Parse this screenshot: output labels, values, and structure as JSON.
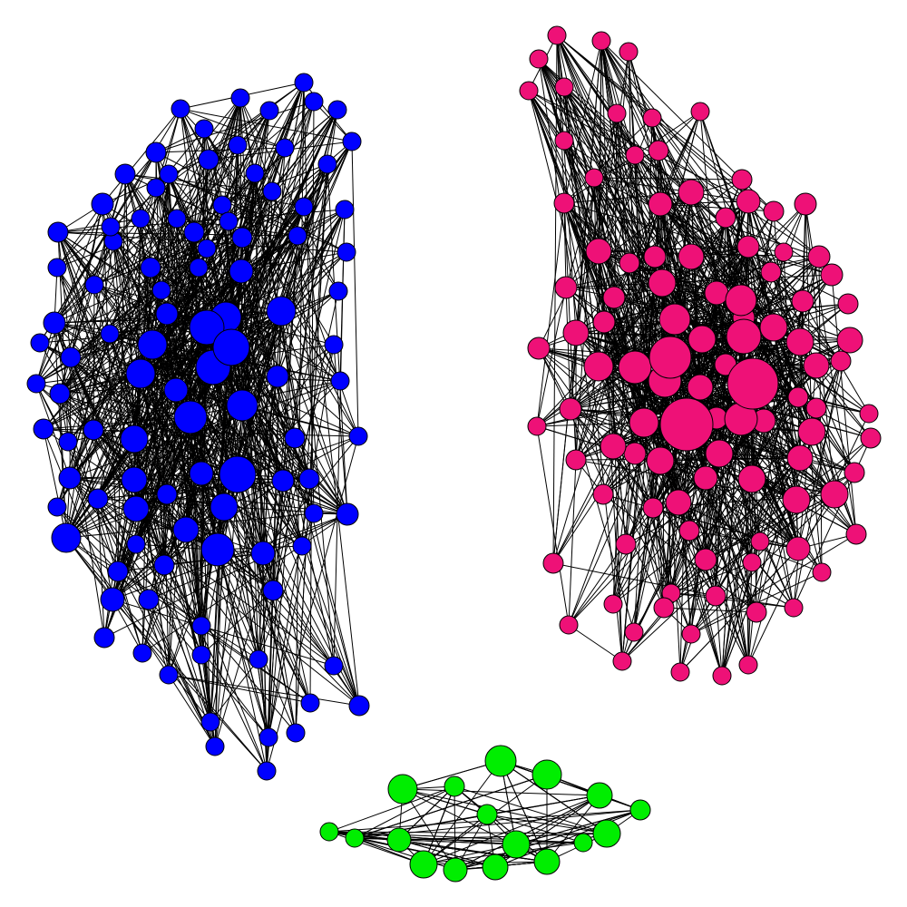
{
  "figure": {
    "type": "network-graph",
    "background": "#ffffff",
    "edge_color": "#000000",
    "node_outline": "#000000"
  },
  "communities": [
    {
      "id": "blue",
      "color": "#0000ff",
      "approx_node_count": 118,
      "relative_size": "large"
    },
    {
      "id": "pink",
      "color": "#ee1177",
      "approx_node_count": 118,
      "relative_size": "large"
    },
    {
      "id": "green",
      "color": "#00ee00",
      "approx_node_count": 20,
      "relative_size": "small"
    }
  ]
}
